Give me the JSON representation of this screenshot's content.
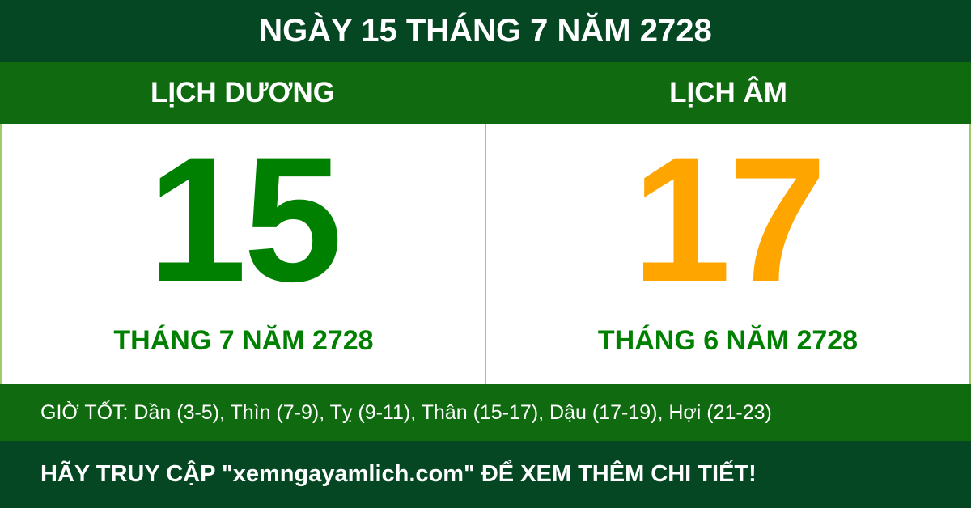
{
  "title": "NGÀY 15 THÁNG 7 NĂM 2728",
  "solar": {
    "heading": "LỊCH DƯƠNG",
    "day": "15",
    "month_year": "THÁNG 7 NĂM 2728"
  },
  "lunar": {
    "heading": "LỊCH ÂM",
    "day": "17",
    "month_year": "THÁNG 6 NĂM 2728"
  },
  "good_hours": "GIỜ TỐT: Dần (3-5), Thìn (7-9), Tỵ (9-11), Thân (15-17), Dậu (17-19), Hợi (21-23)",
  "footer": "HÃY TRUY CẬP \"xemngayamlich.com\" ĐỂ XEM THÊM CHI TIẾT!",
  "colors": {
    "dark_green": "#044722",
    "green": "#106b10",
    "solar_number": "#008000",
    "lunar_number": "#ffa500"
  }
}
